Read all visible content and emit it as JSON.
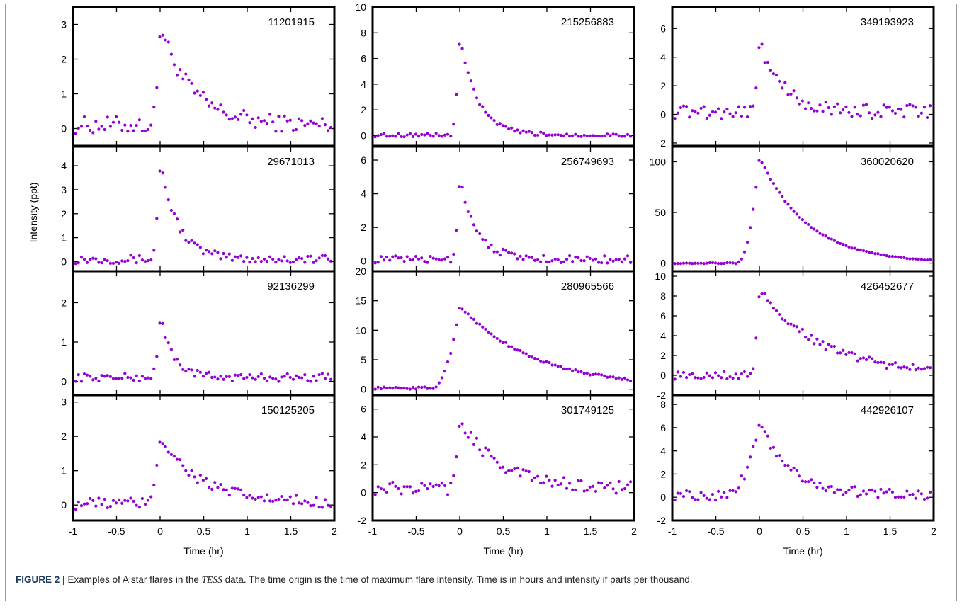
{
  "figure": {
    "caption_label": "FIGURE 2 |",
    "caption_pre": " Examples of A star flares in the ",
    "caption_tess": "TESS",
    "caption_post": " data. The time origin is the time of maximum flare intensity. Time is in hours and intensity if parts per thousand.",
    "marker_color": "#9400d3"
  },
  "chart_data": [
    {
      "type": "scatter",
      "panel": "11201915",
      "xlabel": "Time (hr)",
      "ylabel": "Intensity (ppt)",
      "xlim": [
        -1,
        2
      ],
      "ylim": [
        -0.5,
        3.5
      ],
      "yticks": [
        0,
        1,
        2,
        3
      ],
      "xticks": [],
      "peak": 3.0,
      "profile": "impulsive",
      "rise": 0.05,
      "decay": 0.35,
      "base": 0.1,
      "noise": 0.25,
      "x": [],
      "y": []
    },
    {
      "type": "scatter",
      "panel": "29671013",
      "xlabel": "Time (hr)",
      "ylabel": "Intensity (ppt)",
      "xlim": [
        -1,
        2
      ],
      "ylim": [
        -0.4,
        4.8
      ],
      "yticks": [
        0,
        1,
        2,
        3,
        4
      ],
      "xticks": [],
      "peak": 4.2,
      "profile": "impulsive",
      "rise": 0.05,
      "decay": 0.2,
      "base": 0.1,
      "noise": 0.18,
      "x": [],
      "y": []
    },
    {
      "type": "scatter",
      "panel": "92136299",
      "xlabel": "Time (hr)",
      "ylabel": "Intensity (ppt)",
      "xlim": [
        -1,
        2
      ],
      "ylim": [
        -0.35,
        2.8
      ],
      "yticks": [
        0,
        1,
        2
      ],
      "xticks": [],
      "peak": 1.65,
      "profile": "impulsive",
      "rise": 0.05,
      "decay": 0.15,
      "base": 0.1,
      "noise": 0.1,
      "x": [],
      "y": []
    },
    {
      "type": "scatter",
      "panel": "150125205",
      "xlabel": "Time (hr)",
      "ylabel": "Intensity (ppt)",
      "xlim": [
        -1,
        2
      ],
      "ylim": [
        -0.45,
        3.2
      ],
      "yticks": [
        0,
        1,
        2,
        3
      ],
      "xticks": [
        -1,
        -0.5,
        0,
        0.5,
        1,
        1.5,
        2
      ],
      "peak": 2.0,
      "profile": "gradual",
      "rise": 0.08,
      "decay": 0.45,
      "base": 0.05,
      "noise": 0.17,
      "x": [],
      "y": []
    },
    {
      "type": "scatter",
      "panel": "215256883",
      "xlabel": "Time (hr)",
      "ylabel": "Intensity (ppt)",
      "xlim": [
        -1,
        2
      ],
      "ylim": [
        -0.8,
        10
      ],
      "yticks": [
        0,
        2,
        4,
        6,
        8,
        10
      ],
      "xticks": [],
      "peak": 7.8,
      "profile": "impulsive",
      "rise": 0.05,
      "decay": 0.2,
      "base": 0.05,
      "noise": 0.15,
      "x": [],
      "y": []
    },
    {
      "type": "scatter",
      "panel": "256749693",
      "xlabel": "Time (hr)",
      "ylabel": "Intensity (ppt)",
      "xlim": [
        -1,
        2
      ],
      "ylim": [
        -0.6,
        6.8
      ],
      "yticks": [
        0,
        2,
        4,
        6
      ],
      "xticks": [],
      "peak": 4.9,
      "profile": "impulsive",
      "rise": 0.05,
      "decay": 0.2,
      "base": 0.1,
      "noise": 0.22,
      "x": [],
      "y": []
    },
    {
      "type": "scatter",
      "panel": "280965566",
      "xlabel": "Time (hr)",
      "ylabel": "Intensity (ppt)",
      "xlim": [
        -1,
        2
      ],
      "ylim": [
        -1,
        20
      ],
      "yticks": [
        0,
        5,
        10,
        15,
        20
      ],
      "xticks": [],
      "peak": 14.2,
      "profile": "gradual",
      "rise": 0.15,
      "decay": 0.85,
      "base": 0.2,
      "noise": 0.2,
      "x": [],
      "y": []
    },
    {
      "type": "scatter",
      "panel": "301749125",
      "xlabel": "Time (hr)",
      "ylabel": "Intensity (ppt)",
      "xlim": [
        -1,
        2
      ],
      "ylim": [
        -2,
        7
      ],
      "yticks": [
        -2,
        0,
        2,
        4,
        6
      ],
      "xticks": [
        -1,
        -0.5,
        0,
        0.5,
        1,
        1.5,
        2
      ],
      "peak": 5.3,
      "profile": "gradual",
      "rise": 0.05,
      "decay": 0.45,
      "base": 0.3,
      "noise": 0.45,
      "x": [],
      "y": []
    },
    {
      "type": "scatter",
      "panel": "349193923",
      "xlabel": "Time (hr)",
      "ylabel": "Intensity (ppt)",
      "xlim": [
        -1,
        2
      ],
      "ylim": [
        -2.2,
        7.5
      ],
      "yticks": [
        -2,
        0,
        2,
        4,
        6
      ],
      "xticks": [],
      "peak": 5.2,
      "profile": "impulsive",
      "rise": 0.05,
      "decay": 0.25,
      "base": 0.2,
      "noise": 0.5,
      "x": [],
      "y": []
    },
    {
      "type": "scatter",
      "panel": "360020620",
      "xlabel": "Time (hr)",
      "ylabel": "Intensity (ppt)",
      "xlim": [
        -1,
        2
      ],
      "ylim": [
        -8,
        115
      ],
      "yticks": [
        0,
        50,
        100
      ],
      "xticks": [],
      "peak": 105,
      "profile": "gradual",
      "rise": 0.12,
      "decay": 0.55,
      "base": 0,
      "noise": 0.5,
      "x": [],
      "y": []
    },
    {
      "type": "scatter",
      "panel": "426452677",
      "xlabel": "Time (hr)",
      "ylabel": "Intensity (ppt)",
      "xlim": [
        -1,
        2
      ],
      "ylim": [
        -2,
        10.5
      ],
      "yticks": [
        -2,
        0,
        2,
        4,
        6,
        8,
        10
      ],
      "xticks": [],
      "peak": 8.7,
      "profile": "gradual",
      "rise": 0.05,
      "decay": 0.7,
      "base": 0,
      "noise": 0.4,
      "x": [],
      "y": []
    },
    {
      "type": "scatter",
      "panel": "442926107",
      "xlabel": "Time (hr)",
      "ylabel": "Intensity (ppt)",
      "xlim": [
        -1,
        2
      ],
      "ylim": [
        -2,
        8.8
      ],
      "yticks": [
        -2,
        0,
        2,
        4,
        6,
        8
      ],
      "xticks": [
        -1,
        -0.5,
        0,
        0.5,
        1,
        1.5,
        2
      ],
      "peak": 6.4,
      "profile": "gradual",
      "rise": 0.18,
      "decay": 0.35,
      "base": 0.2,
      "noise": 0.45,
      "x": [],
      "y": []
    }
  ]
}
